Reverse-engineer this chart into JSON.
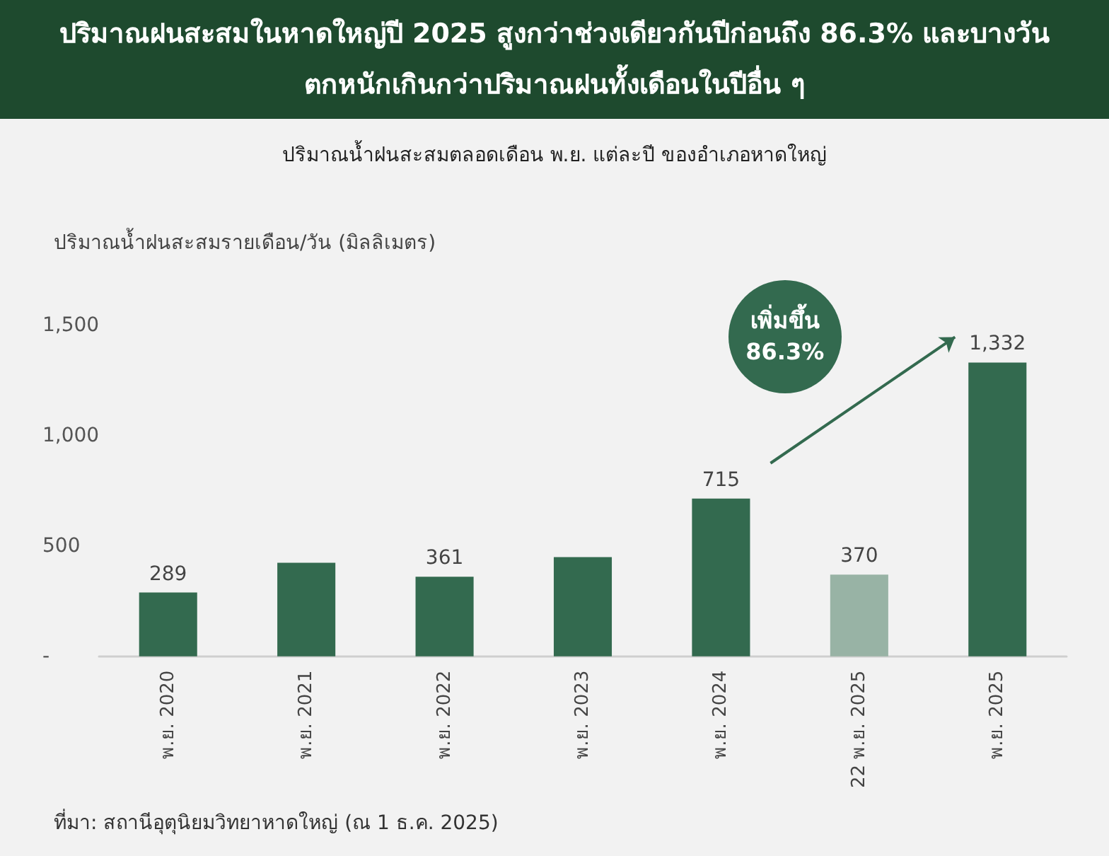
{
  "chart_data": {
    "type": "bar",
    "title": "ปริมาณฝนสะสมในหาดใหญ่ปี 2025 สูงกว่าช่วงเดียวกันปีก่อนถึง 86.3% และบางวันตกหนักเกินกว่าปริมาณฝนทั้งเดือนในปีอื่น ๆ",
    "subtitle": "ปริมาณน้ำฝนสะสมตลอดเดือน พ.ย. แต่ละปี ของอำเภอหาดใหญ่",
    "ylabel": "ปริมาณน้ำฝนสะสมรายเดือน/วัน (มิลลิเมตร)",
    "categories": [
      "พ.ย. 2020",
      "พ.ย. 2021",
      "พ.ย. 2022",
      "พ.ย. 2023",
      "พ.ย. 2024",
      "22 พ.ย. 2025",
      "พ.ย. 2025"
    ],
    "values": [
      289,
      424,
      361,
      450,
      715,
      370,
      1332
    ],
    "value_labels": [
      "289",
      null,
      "361",
      null,
      "715",
      "370",
      "1,332"
    ],
    "colors": [
      "#336a4f",
      "#336a4f",
      "#336a4f",
      "#336a4f",
      "#336a4f",
      "#98b3a5",
      "#336a4f"
    ],
    "ylim": [
      0,
      1500
    ],
    "yticks": [
      {
        "value": 0,
        "label": "-"
      },
      {
        "value": 500,
        "label": "500"
      },
      {
        "value": 1000,
        "label": "1,000"
      },
      {
        "value": 1500,
        "label": "1,500"
      }
    ],
    "grid": false,
    "annotations": [
      "เพิ่มขึ้น 86.3%",
      "ที่มา: สถานีอุตุนิยมวิทยาหาดใหญ่ (ณ 1 ธ.ค. 2025)"
    ]
  }
}
